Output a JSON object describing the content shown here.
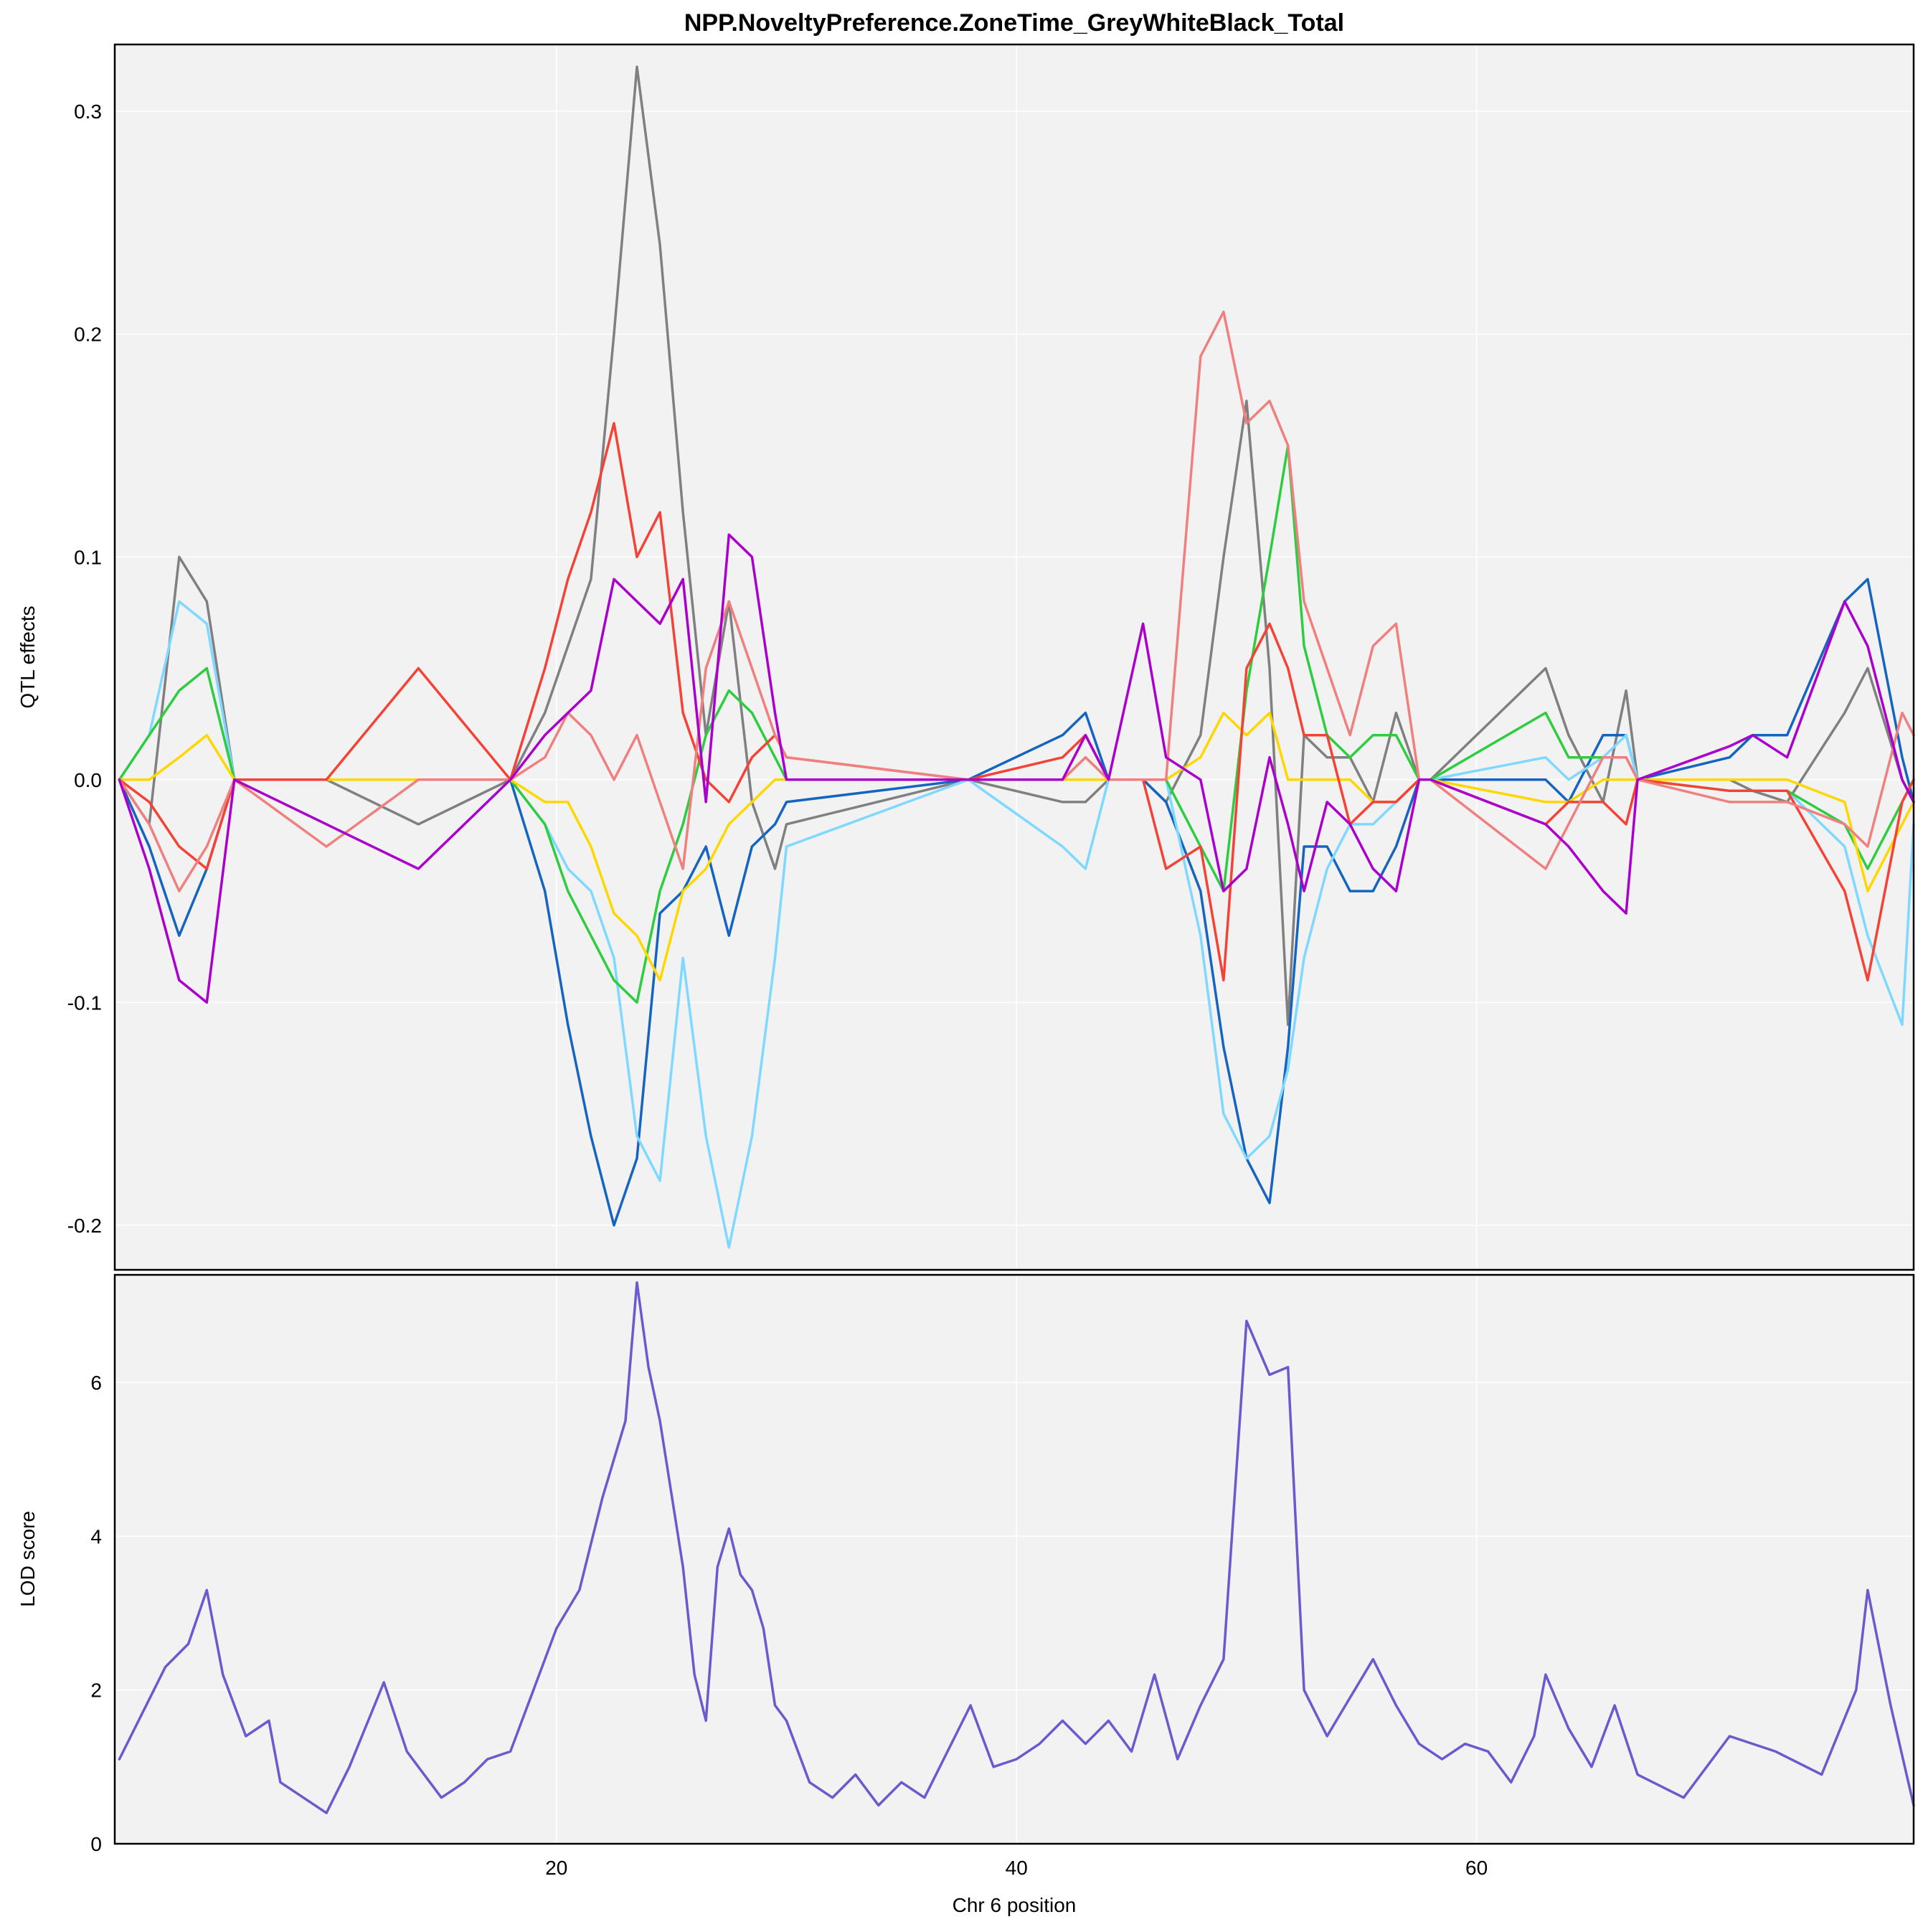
{
  "chart_data": [
    {
      "type": "line",
      "title": "NPP.NoveltyPreference.ZoneTime_GreyWhiteBlack_Total",
      "ylabel": "QTL effects",
      "ylim": [
        -0.22,
        0.33
      ],
      "yticks": [
        -0.2,
        -0.1,
        0.0,
        0.1,
        0.2,
        0.3
      ],
      "ytick_labels": [
        "-0.2",
        "-0.1",
        "0.0",
        "0.1",
        "0.2",
        "0.3"
      ],
      "grid": true,
      "series": [
        {
          "color": "#808080",
          "x": [
            1.0,
            2.3,
            3.6,
            4.8,
            6.0,
            10.0,
            14.0,
            18.0,
            19.5,
            20.5,
            21.5,
            22.5,
            23.5,
            24.5,
            25.5,
            26.5,
            27.5,
            28.5,
            29.5,
            30.0,
            37.9,
            42.0,
            43.0,
            44.0,
            45.5,
            46.5,
            48.0,
            49.0,
            50.0,
            51.0,
            51.8,
            52.5,
            53.5,
            54.5,
            55.5,
            56.5,
            57.5,
            58.0,
            63.0,
            64.0,
            65.5,
            66.5,
            67.0,
            71.0,
            72.0,
            73.5,
            76.0,
            77.0,
            78.5,
            79.0
          ],
          "y": [
            0.0,
            -0.02,
            0.1,
            0.08,
            0.0,
            0.0,
            -0.02,
            0.0,
            0.03,
            0.06,
            0.09,
            0.2,
            0.32,
            0.24,
            0.12,
            0.02,
            0.08,
            -0.01,
            -0.04,
            -0.02,
            0.0,
            -0.01,
            -0.01,
            0.0,
            0.0,
            -0.01,
            0.02,
            0.1,
            0.17,
            0.05,
            -0.11,
            0.02,
            0.01,
            0.01,
            -0.01,
            0.03,
            0.0,
            0.0,
            0.05,
            0.02,
            -0.01,
            0.04,
            0.0,
            0.0,
            -0.005,
            -0.01,
            0.03,
            0.05,
            0.0,
            -0.01
          ]
        },
        {
          "color": "#1565c0",
          "x": [
            1.0,
            2.3,
            3.6,
            4.8,
            6.0,
            10.0,
            14.0,
            18.0,
            19.5,
            20.5,
            21.5,
            22.5,
            23.5,
            24.5,
            25.5,
            26.5,
            27.5,
            28.5,
            29.5,
            30.0,
            37.9,
            42.0,
            43.0,
            44.0,
            45.5,
            46.5,
            48.0,
            49.0,
            50.0,
            51.0,
            51.8,
            52.5,
            53.5,
            54.5,
            55.5,
            56.5,
            57.5,
            58.0,
            63.0,
            64.0,
            65.5,
            66.5,
            67.0,
            71.0,
            72.0,
            73.5,
            76.0,
            77.0,
            78.5,
            79.0
          ],
          "y": [
            0.0,
            -0.03,
            -0.07,
            -0.04,
            0.0,
            0.0,
            0.0,
            0.0,
            -0.05,
            -0.11,
            -0.16,
            -0.2,
            -0.17,
            -0.06,
            -0.05,
            -0.03,
            -0.07,
            -0.03,
            -0.02,
            -0.01,
            0.0,
            0.02,
            0.03,
            0.0,
            0.0,
            -0.01,
            -0.05,
            -0.12,
            -0.17,
            -0.19,
            -0.12,
            -0.03,
            -0.03,
            -0.05,
            -0.05,
            -0.03,
            0.0,
            0.0,
            0.0,
            -0.01,
            0.02,
            0.02,
            0.0,
            0.01,
            0.02,
            0.02,
            0.08,
            0.09,
            0.01,
            -0.01
          ]
        },
        {
          "color": "#7fd8ff",
          "x": [
            1.0,
            2.3,
            3.6,
            4.8,
            6.0,
            10.0,
            14.0,
            18.0,
            19.5,
            20.5,
            21.5,
            22.5,
            23.5,
            24.5,
            25.5,
            26.5,
            27.5,
            28.5,
            29.5,
            30.0,
            37.9,
            42.0,
            43.0,
            44.0,
            45.5,
            46.5,
            48.0,
            49.0,
            50.0,
            51.0,
            51.8,
            52.5,
            53.5,
            54.5,
            55.5,
            56.5,
            57.5,
            58.0,
            63.0,
            64.0,
            65.5,
            66.5,
            67.0,
            71.0,
            72.0,
            73.5,
            76.0,
            77.0,
            78.5,
            79.0
          ],
          "y": [
            0.0,
            0.02,
            0.08,
            0.07,
            0.0,
            0.0,
            0.0,
            0.0,
            -0.02,
            -0.04,
            -0.05,
            -0.08,
            -0.16,
            -0.18,
            -0.08,
            -0.16,
            -0.21,
            -0.16,
            -0.08,
            -0.03,
            0.0,
            -0.03,
            -0.04,
            0.0,
            0.0,
            0.0,
            -0.07,
            -0.15,
            -0.17,
            -0.16,
            -0.13,
            -0.08,
            -0.04,
            -0.02,
            -0.02,
            -0.01,
            0.0,
            0.0,
            0.01,
            0.0,
            0.01,
            0.02,
            0.0,
            -0.005,
            -0.005,
            -0.005,
            -0.03,
            -0.07,
            -0.11,
            -0.02
          ]
        },
        {
          "color": "#2ecc40",
          "x": [
            1.0,
            2.3,
            3.6,
            4.8,
            6.0,
            10.0,
            14.0,
            18.0,
            19.5,
            20.5,
            21.5,
            22.5,
            23.5,
            24.5,
            25.5,
            26.5,
            27.5,
            28.5,
            29.5,
            30.0,
            37.9,
            42.0,
            43.0,
            44.0,
            45.5,
            46.5,
            48.0,
            49.0,
            50.0,
            51.0,
            51.8,
            52.5,
            53.5,
            54.5,
            55.5,
            56.5,
            57.5,
            58.0,
            63.0,
            64.0,
            65.5,
            66.5,
            67.0,
            71.0,
            72.0,
            73.5,
            76.0,
            77.0,
            78.5,
            79.0
          ],
          "y": [
            0.0,
            0.02,
            0.04,
            0.05,
            0.0,
            0.0,
            0.0,
            0.0,
            -0.02,
            -0.05,
            -0.07,
            -0.09,
            -0.1,
            -0.05,
            -0.02,
            0.02,
            0.04,
            0.03,
            0.01,
            0.0,
            0.0,
            0.0,
            0.01,
            0.0,
            0.0,
            0.0,
            -0.03,
            -0.05,
            0.04,
            0.1,
            0.15,
            0.06,
            0.02,
            0.01,
            0.02,
            0.02,
            0.0,
            0.0,
            0.03,
            0.01,
            0.01,
            0.01,
            0.0,
            -0.005,
            -0.005,
            -0.005,
            -0.02,
            -0.04,
            -0.01,
            0.0
          ]
        },
        {
          "color": "#ffd700",
          "x": [
            1.0,
            2.3,
            3.6,
            4.8,
            6.0,
            10.0,
            14.0,
            18.0,
            19.5,
            20.5,
            21.5,
            22.5,
            23.5,
            24.5,
            25.5,
            26.5,
            27.5,
            28.5,
            29.5,
            30.0,
            37.9,
            42.0,
            43.0,
            44.0,
            45.5,
            46.5,
            48.0,
            49.0,
            50.0,
            51.0,
            51.8,
            52.5,
            53.5,
            54.5,
            55.5,
            56.5,
            57.5,
            58.0,
            63.0,
            64.0,
            65.5,
            66.5,
            67.0,
            71.0,
            72.0,
            73.5,
            76.0,
            77.0,
            78.5,
            79.0
          ],
          "y": [
            0.0,
            0.0,
            0.01,
            0.02,
            0.0,
            0.0,
            0.0,
            0.0,
            -0.01,
            -0.01,
            -0.03,
            -0.06,
            -0.07,
            -0.09,
            -0.05,
            -0.04,
            -0.02,
            -0.01,
            0.0,
            0.0,
            0.0,
            0.0,
            0.0,
            0.0,
            0.0,
            0.0,
            0.01,
            0.03,
            0.02,
            0.03,
            0.0,
            0.0,
            0.0,
            0.0,
            -0.01,
            -0.01,
            0.0,
            0.0,
            -0.01,
            -0.01,
            0.0,
            0.0,
            0.0,
            0.0,
            0.0,
            0.0,
            -0.01,
            -0.05,
            -0.02,
            -0.01
          ]
        },
        {
          "color": "#f44336",
          "x": [
            1.0,
            2.3,
            3.6,
            4.8,
            6.0,
            10.0,
            14.0,
            18.0,
            19.5,
            20.5,
            21.5,
            22.5,
            23.5,
            24.5,
            25.5,
            26.5,
            27.5,
            28.5,
            29.5,
            30.0,
            37.9,
            42.0,
            43.0,
            44.0,
            45.5,
            46.5,
            48.0,
            49.0,
            50.0,
            51.0,
            51.8,
            52.5,
            53.5,
            54.5,
            55.5,
            56.5,
            57.5,
            58.0,
            63.0,
            64.0,
            65.5,
            66.5,
            67.0,
            71.0,
            72.0,
            73.5,
            76.0,
            77.0,
            78.5,
            79.0
          ],
          "y": [
            0.0,
            -0.01,
            -0.03,
            -0.04,
            0.0,
            0.0,
            0.05,
            0.0,
            0.05,
            0.09,
            0.12,
            0.16,
            0.1,
            0.12,
            0.03,
            0.0,
            -0.01,
            0.01,
            0.02,
            0.01,
            0.0,
            0.01,
            0.02,
            0.0,
            0.0,
            -0.04,
            -0.03,
            -0.09,
            0.05,
            0.07,
            0.05,
            0.02,
            0.02,
            -0.02,
            -0.01,
            -0.01,
            0.0,
            0.0,
            -0.02,
            -0.01,
            -0.01,
            -0.02,
            0.0,
            -0.005,
            -0.005,
            -0.005,
            -0.05,
            -0.09,
            -0.01,
            0.0
          ]
        },
        {
          "color": "#f08080",
          "x": [
            1.0,
            2.3,
            3.6,
            4.8,
            6.0,
            10.0,
            14.0,
            18.0,
            19.5,
            20.5,
            21.5,
            22.5,
            23.5,
            24.5,
            25.5,
            26.5,
            27.5,
            28.5,
            29.5,
            30.0,
            37.9,
            42.0,
            43.0,
            44.0,
            45.5,
            46.5,
            48.0,
            49.0,
            50.0,
            51.0,
            51.8,
            52.5,
            53.5,
            54.5,
            55.5,
            56.5,
            57.5,
            58.0,
            63.0,
            64.0,
            65.5,
            66.5,
            67.0,
            71.0,
            72.0,
            73.5,
            76.0,
            77.0,
            78.5,
            79.0
          ],
          "y": [
            0.0,
            -0.02,
            -0.05,
            -0.03,
            0.0,
            -0.03,
            0.0,
            0.0,
            0.01,
            0.03,
            0.02,
            0.0,
            0.02,
            -0.01,
            -0.04,
            0.05,
            0.08,
            0.05,
            0.02,
            0.01,
            0.0,
            0.0,
            0.01,
            0.0,
            0.0,
            0.0,
            0.19,
            0.21,
            0.16,
            0.17,
            0.15,
            0.08,
            0.05,
            0.02,
            0.06,
            0.07,
            0.0,
            0.0,
            -0.04,
            -0.02,
            0.01,
            0.01,
            0.0,
            -0.01,
            -0.01,
            -0.01,
            -0.02,
            -0.03,
            0.03,
            0.02
          ]
        },
        {
          "color": "#aa00cc",
          "x": [
            1.0,
            2.3,
            3.6,
            4.8,
            6.0,
            10.0,
            14.0,
            18.0,
            19.5,
            20.5,
            21.5,
            22.5,
            23.5,
            24.5,
            25.5,
            26.5,
            27.5,
            28.5,
            29.5,
            30.0,
            37.9,
            42.0,
            43.0,
            44.0,
            45.5,
            46.5,
            48.0,
            49.0,
            50.0,
            51.0,
            51.8,
            52.5,
            53.5,
            54.5,
            55.5,
            56.5,
            57.5,
            58.0,
            63.0,
            64.0,
            65.5,
            66.5,
            67.0,
            71.0,
            72.0,
            73.5,
            76.0,
            77.0,
            78.5,
            79.0
          ],
          "y": [
            0.0,
            -0.04,
            -0.09,
            -0.1,
            0.0,
            -0.02,
            -0.04,
            0.0,
            0.02,
            0.03,
            0.04,
            0.09,
            0.08,
            0.07,
            0.09,
            -0.01,
            0.11,
            0.1,
            0.03,
            0.0,
            0.0,
            0.0,
            0.02,
            0.0,
            0.07,
            0.01,
            0.0,
            -0.05,
            -0.04,
            0.01,
            -0.02,
            -0.05,
            -0.01,
            -0.02,
            -0.04,
            -0.05,
            0.0,
            0.0,
            -0.02,
            -0.03,
            -0.05,
            -0.06,
            0.0,
            0.015,
            0.02,
            0.01,
            0.08,
            0.06,
            0.0,
            -0.01
          ]
        }
      ]
    },
    {
      "type": "line",
      "ylabel": "LOD score",
      "xlabel": "Chr 6 position",
      "xlim": [
        0.8,
        79.0
      ],
      "xticks": [
        20,
        40,
        60
      ],
      "xtick_labels": [
        "20",
        "40",
        "60"
      ],
      "ylim": [
        0,
        7.4
      ],
      "yticks": [
        0,
        2,
        4,
        6
      ],
      "ytick_labels": [
        "0",
        "2",
        "4",
        "6"
      ],
      "grid": true,
      "series": [
        {
          "color": "#6a5acd",
          "x": [
            1.0,
            2.0,
            3.0,
            4.0,
            4.8,
            5.5,
            6.5,
            7.5,
            8.0,
            9.0,
            10.0,
            11.0,
            12.5,
            13.5,
            14.0,
            15.0,
            16.0,
            17.0,
            18.0,
            19.0,
            20.0,
            21.0,
            22.0,
            23.0,
            23.5,
            24.0,
            24.5,
            25.5,
            26.0,
            26.5,
            27.0,
            27.5,
            28.0,
            28.5,
            29.0,
            29.5,
            30.0,
            31.0,
            32.0,
            33.0,
            34.0,
            35.0,
            36.0,
            37.0,
            38.0,
            39.0,
            40.0,
            41.0,
            42.0,
            43.0,
            44.0,
            45.0,
            46.0,
            47.0,
            48.0,
            49.0,
            50.0,
            51.0,
            51.8,
            52.5,
            53.5,
            54.5,
            55.5,
            56.5,
            57.5,
            58.5,
            59.5,
            60.5,
            61.5,
            62.5,
            63.0,
            64.0,
            65.0,
            66.0,
            67.0,
            69.0,
            71.0,
            73.0,
            75.0,
            76.5,
            77.0,
            78.0,
            79.0
          ],
          "y": [
            1.1,
            1.7,
            2.3,
            2.6,
            3.3,
            2.2,
            1.4,
            1.6,
            0.8,
            0.6,
            0.4,
            1.0,
            2.1,
            1.2,
            1.0,
            0.6,
            0.8,
            1.1,
            1.2,
            2.0,
            2.8,
            3.3,
            4.5,
            5.5,
            7.3,
            6.2,
            5.5,
            3.6,
            2.2,
            1.6,
            3.6,
            4.1,
            3.5,
            3.3,
            2.8,
            1.8,
            1.6,
            0.8,
            0.6,
            0.9,
            0.5,
            0.8,
            0.6,
            1.2,
            1.8,
            1.0,
            1.1,
            1.3,
            1.6,
            1.3,
            1.6,
            1.2,
            2.2,
            1.1,
            1.8,
            2.4,
            6.8,
            6.1,
            6.2,
            2.0,
            1.4,
            1.9,
            2.4,
            1.8,
            1.3,
            1.1,
            1.3,
            1.2,
            0.8,
            1.4,
            2.2,
            1.5,
            1.0,
            1.8,
            0.9,
            0.6,
            1.4,
            1.2,
            0.9,
            2.0,
            3.3,
            1.8,
            0.5
          ]
        }
      ]
    }
  ]
}
